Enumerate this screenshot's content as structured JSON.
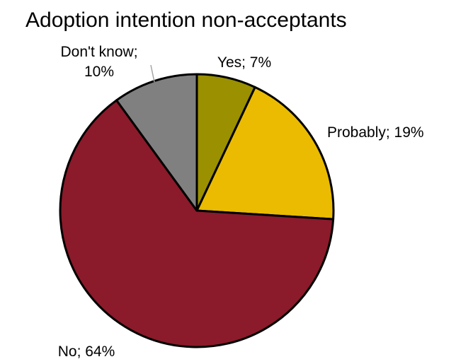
{
  "chart_data": {
    "type": "pie",
    "title": "Adoption intention non-acceptants",
    "slices": [
      {
        "name": "Yes",
        "value": 7,
        "label": "Yes; 7%",
        "color": "#9a9000"
      },
      {
        "name": "Probably",
        "value": 19,
        "label": "Probably; 19%",
        "color": "#eabb00"
      },
      {
        "name": "No",
        "value": 64,
        "label": "No; 64%",
        "color": "#8b1a2a"
      },
      {
        "name": "Don't know",
        "value": 10,
        "label_lines": [
          "Don't know;",
          "10%"
        ],
        "color": "#808080"
      }
    ],
    "start_angle": "12 o'clock",
    "direction": "clockwise",
    "slice_border_color": "#000000",
    "legend": "none"
  }
}
